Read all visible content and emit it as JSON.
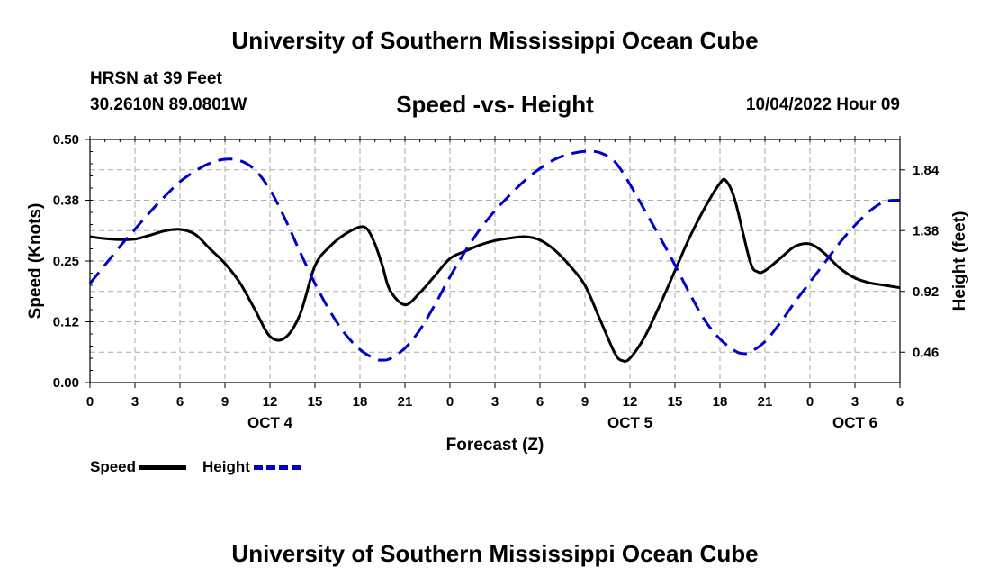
{
  "header": {
    "title": "University of Southern Mississippi Ocean Cube",
    "station": "HRSN at 39 Feet",
    "coords": "30.2610N  89.0801W",
    "subtitle": "Speed -vs- Height",
    "datetime": "10/04/2022 Hour 09"
  },
  "footer": {
    "title": "University of Southern Mississippi Ocean Cube"
  },
  "legend": {
    "speed_label": "Speed",
    "height_label": "Height"
  },
  "colors": {
    "speed": "#000000",
    "height": "#0000cc",
    "grid": "#aaaaaa"
  },
  "chart_data": {
    "type": "line",
    "title": "Speed -vs- Height",
    "xlabel": "Forecast (Z)",
    "ylabel": "Speed (Knots)",
    "y2label": "Height (feet)",
    "grid": true,
    "legend_position": "bottom-left",
    "x_range_hours": [
      0,
      54
    ],
    "x_ticks": [
      {
        "hour": 0,
        "label": "0"
      },
      {
        "hour": 3,
        "label": "3"
      },
      {
        "hour": 6,
        "label": "6"
      },
      {
        "hour": 9,
        "label": "9"
      },
      {
        "hour": 12,
        "label": "12"
      },
      {
        "hour": 15,
        "label": "15"
      },
      {
        "hour": 18,
        "label": "18"
      },
      {
        "hour": 21,
        "label": "21"
      },
      {
        "hour": 24,
        "label": "0"
      },
      {
        "hour": 27,
        "label": "3"
      },
      {
        "hour": 30,
        "label": "6"
      },
      {
        "hour": 33,
        "label": "9"
      },
      {
        "hour": 36,
        "label": "12"
      },
      {
        "hour": 39,
        "label": "15"
      },
      {
        "hour": 42,
        "label": "18"
      },
      {
        "hour": 45,
        "label": "21"
      },
      {
        "hour": 48,
        "label": "0"
      },
      {
        "hour": 51,
        "label": "3"
      },
      {
        "hour": 54,
        "label": "6"
      }
    ],
    "date_labels": [
      {
        "hour": 12,
        "label": "OCT 4"
      },
      {
        "hour": 36,
        "label": "OCT 5"
      },
      {
        "hour": 51,
        "label": "OCT 6"
      }
    ],
    "ylim": [
      0,
      0.5
    ],
    "y_ticks": [
      {
        "value": 0.0,
        "label": "0.00"
      },
      {
        "value": 0.125,
        "label": "0.12"
      },
      {
        "value": 0.25,
        "label": "0.25"
      },
      {
        "value": 0.375,
        "label": "0.38"
      },
      {
        "value": 0.5,
        "label": "0.50"
      }
    ],
    "y2lim": [
      0.23,
      2.07
    ],
    "y2_ticks": [
      {
        "value": 0.46,
        "label": "0.46"
      },
      {
        "value": 0.92,
        "label": "0.92"
      },
      {
        "value": 1.38,
        "label": "1.38"
      },
      {
        "value": 1.84,
        "label": "1.84"
      }
    ],
    "series": [
      {
        "name": "Speed",
        "axis": "left",
        "x": [
          0,
          1,
          2,
          3,
          4,
          5,
          6,
          7,
          8,
          9,
          10,
          11,
          12,
          13,
          14,
          15,
          16,
          17,
          18,
          18.5,
          19,
          19.5,
          20,
          21,
          22,
          23,
          24,
          25,
          26,
          27,
          28,
          29,
          30,
          31,
          32,
          33,
          34,
          35,
          35.5,
          36,
          37,
          38,
          39,
          40,
          41,
          42,
          42.4,
          43,
          44,
          44.5,
          45,
          46,
          47,
          48,
          49,
          50,
          51,
          52,
          53,
          54
        ],
        "y": [
          0.3,
          0.296,
          0.294,
          0.295,
          0.303,
          0.312,
          0.315,
          0.305,
          0.275,
          0.245,
          0.205,
          0.15,
          0.095,
          0.092,
          0.14,
          0.24,
          0.28,
          0.305,
          0.32,
          0.315,
          0.285,
          0.24,
          0.19,
          0.16,
          0.185,
          0.22,
          0.255,
          0.27,
          0.283,
          0.292,
          0.297,
          0.3,
          0.293,
          0.272,
          0.24,
          0.2,
          0.13,
          0.06,
          0.045,
          0.05,
          0.095,
          0.16,
          0.23,
          0.3,
          0.36,
          0.41,
          0.415,
          0.375,
          0.25,
          0.228,
          0.23,
          0.255,
          0.28,
          0.285,
          0.265,
          0.235,
          0.215,
          0.205,
          0.2,
          0.195
        ]
      },
      {
        "name": "Height",
        "axis": "right",
        "x": [
          0,
          1,
          2,
          3,
          4,
          5,
          6,
          7,
          8,
          9,
          10,
          11,
          12,
          13,
          14,
          15,
          16,
          17,
          18,
          19,
          19.5,
          20,
          21,
          22,
          23,
          24,
          25,
          26,
          27,
          28,
          29,
          30,
          31,
          32,
          33,
          34,
          35,
          36,
          37,
          38,
          39,
          40,
          41,
          42,
          43,
          43.5,
          44,
          45,
          46,
          47,
          48,
          49,
          50,
          51,
          52,
          53,
          54
        ],
        "y": [
          0.98,
          1.12,
          1.26,
          1.39,
          1.52,
          1.64,
          1.75,
          1.83,
          1.89,
          1.92,
          1.91,
          1.84,
          1.69,
          1.47,
          1.22,
          0.98,
          0.77,
          0.6,
          0.48,
          0.41,
          0.4,
          0.41,
          0.49,
          0.63,
          0.82,
          1.03,
          1.22,
          1.39,
          1.53,
          1.65,
          1.76,
          1.85,
          1.92,
          1.96,
          1.98,
          1.97,
          1.9,
          1.73,
          1.53,
          1.33,
          1.12,
          0.9,
          0.7,
          0.56,
          0.47,
          0.45,
          0.46,
          0.54,
          0.68,
          0.84,
          0.99,
          1.14,
          1.29,
          1.42,
          1.53,
          1.6,
          1.61
        ]
      }
    ]
  }
}
